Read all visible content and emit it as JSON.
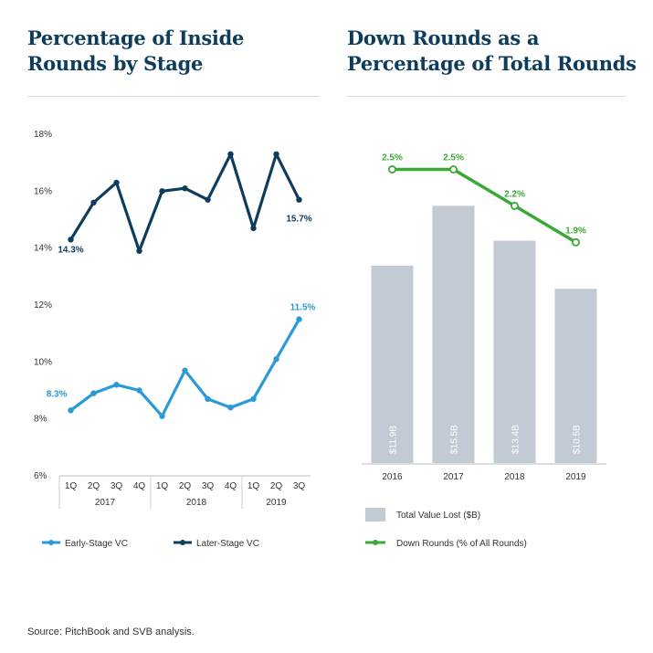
{
  "source_note": "Source: PitchBook and SVB analysis.",
  "chart_data": [
    {
      "type": "line",
      "title": "Percentage of Inside Rounds by Stage",
      "title_lines": [
        "Percentage of Inside",
        "Rounds by Stage"
      ],
      "x_quarters": [
        "1Q",
        "2Q",
        "3Q",
        "4Q",
        "1Q",
        "2Q",
        "3Q",
        "4Q",
        "1Q",
        "2Q",
        "3Q"
      ],
      "x_years": [
        {
          "label": "2017",
          "start": 0,
          "end": 3
        },
        {
          "label": "2018",
          "start": 4,
          "end": 7
        },
        {
          "label": "2019",
          "start": 8,
          "end": 10
        }
      ],
      "ylim": [
        6,
        18
      ],
      "yticks": [
        6,
        8,
        10,
        12,
        14,
        16,
        18
      ],
      "ytick_labels": [
        "6%",
        "8%",
        "10%",
        "12%",
        "14%",
        "16%",
        "18%"
      ],
      "series": [
        {
          "name": "Early-Stage VC",
          "color": "#2a9ad6",
          "values": [
            8.3,
            8.9,
            9.2,
            9.0,
            8.1,
            9.7,
            8.7,
            8.4,
            8.7,
            10.1,
            11.5
          ],
          "start_label": "8.3%",
          "end_label": "11.5%"
        },
        {
          "name": "Later-Stage VC",
          "color": "#0d3c5c",
          "values": [
            14.3,
            15.6,
            16.3,
            13.9,
            16.0,
            16.1,
            15.7,
            17.3,
            14.7,
            17.3,
            15.7
          ],
          "start_label": "14.3%",
          "end_label": "15.7%"
        }
      ],
      "legend": [
        "Early-Stage VC",
        "Later-Stage VC"
      ]
    },
    {
      "type": "bar+line",
      "title": "Down Rounds as a Percentage of Total Rounds",
      "title_lines": [
        "Down Rounds as a",
        "Percentage of Total Rounds"
      ],
      "categories": [
        "2016",
        "2017",
        "2018",
        "2019"
      ],
      "bars": {
        "name": "Total Value Lost ($B)",
        "color": "#c2cad3",
        "values": [
          11.9,
          15.5,
          13.4,
          10.5
        ],
        "labels": [
          "$11.9B",
          "$15.5B",
          "$13.4B",
          "$10.5B"
        ]
      },
      "line": {
        "name": "Down Rounds (% of All Rounds)",
        "color": "#3aa935",
        "values": [
          2.5,
          2.5,
          2.2,
          1.9
        ],
        "labels": [
          "2.5%",
          "2.5%",
          "2.2%",
          "1.9%"
        ]
      },
      "legend": [
        "Total Value Lost ($B)",
        "Down Rounds (% of All Rounds)"
      ]
    }
  ]
}
